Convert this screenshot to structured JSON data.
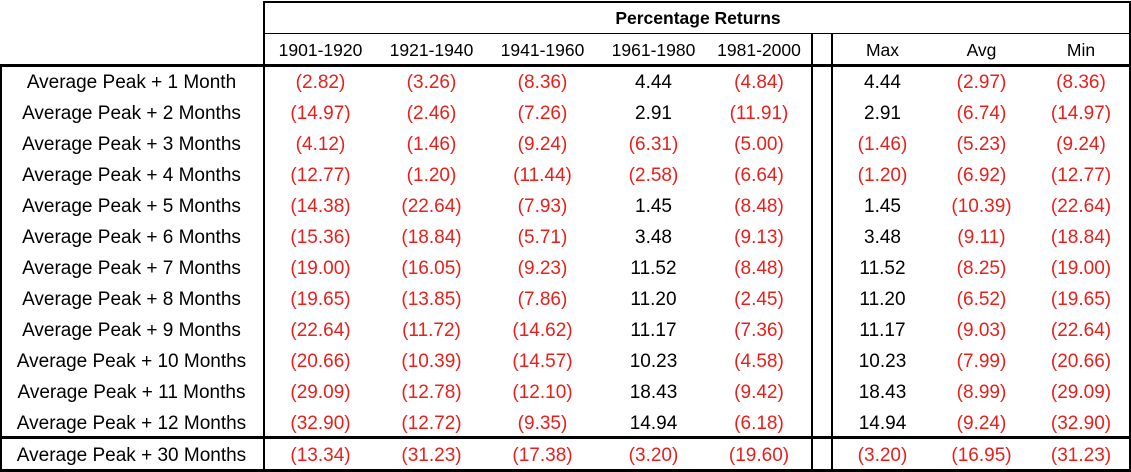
{
  "chart_data": {
    "type": "table",
    "title": "Percentage Returns",
    "columns": [
      "1901-1920",
      "1921-1940",
      "1941-1960",
      "1961-1980",
      "1981-2000",
      "Max",
      "Avg",
      "Min"
    ],
    "rows": [
      {
        "label": "Average Peak + 1 Month",
        "values": [
          "(2.82)",
          "(3.26)",
          "(8.36)",
          "4.44",
          "(4.84)",
          "4.44",
          "(2.97)",
          "(8.36)"
        ]
      },
      {
        "label": "Average Peak + 2 Months",
        "values": [
          "(14.97)",
          "(2.46)",
          "(7.26)",
          "2.91",
          "(11.91)",
          "2.91",
          "(6.74)",
          "(14.97)"
        ]
      },
      {
        "label": "Average Peak + 3 Months",
        "values": [
          "(4.12)",
          "(1.46)",
          "(9.24)",
          "(6.31)",
          "(5.00)",
          "(1.46)",
          "(5.23)",
          "(9.24)"
        ]
      },
      {
        "label": "Average Peak + 4 Months",
        "values": [
          "(12.77)",
          "(1.20)",
          "(11.44)",
          "(2.58)",
          "(6.64)",
          "(1.20)",
          "(6.92)",
          "(12.77)"
        ]
      },
      {
        "label": "Average Peak + 5 Months",
        "values": [
          "(14.38)",
          "(22.64)",
          "(7.93)",
          "1.45",
          "(8.48)",
          "1.45",
          "(10.39)",
          "(22.64)"
        ]
      },
      {
        "label": "Average Peak + 6 Months",
        "values": [
          "(15.36)",
          "(18.84)",
          "(5.71)",
          "3.48",
          "(9.13)",
          "3.48",
          "(9.11)",
          "(18.84)"
        ]
      },
      {
        "label": "Average Peak + 7 Months",
        "values": [
          "(19.00)",
          "(16.05)",
          "(9.23)",
          "11.52",
          "(8.48)",
          "11.52",
          "(8.25)",
          "(19.00)"
        ]
      },
      {
        "label": "Average Peak + 8 Months",
        "values": [
          "(19.65)",
          "(13.85)",
          "(7.86)",
          "11.20",
          "(2.45)",
          "11.20",
          "(6.52)",
          "(19.65)"
        ]
      },
      {
        "label": "Average Peak + 9 Months",
        "values": [
          "(22.64)",
          "(11.72)",
          "(14.62)",
          "11.17",
          "(7.36)",
          "11.17",
          "(9.03)",
          "(22.64)"
        ]
      },
      {
        "label": "Average Peak + 10 Months",
        "values": [
          "(20.66)",
          "(10.39)",
          "(14.57)",
          "10.23",
          "(4.58)",
          "10.23",
          "(7.99)",
          "(20.66)"
        ]
      },
      {
        "label": "Average Peak + 11 Months",
        "values": [
          "(29.09)",
          "(12.78)",
          "(12.10)",
          "18.43",
          "(9.42)",
          "18.43",
          "(8.99)",
          "(29.09)"
        ]
      },
      {
        "label": "Average Peak + 12 Months",
        "values": [
          "(32.90)",
          "(12.72)",
          "(9.35)",
          "14.94",
          "(6.18)",
          "14.94",
          "(9.24)",
          "(32.90)"
        ]
      },
      {
        "label": "Average Peak + 30 Months",
        "values": [
          "(13.34)",
          "(31.23)",
          "(17.38)",
          "(3.20)",
          "(19.60)",
          "(3.20)",
          "(16.95)",
          "(31.23)"
        ]
      }
    ],
    "colors": {
      "negative": "#e8201c",
      "positive": "#000000"
    }
  }
}
